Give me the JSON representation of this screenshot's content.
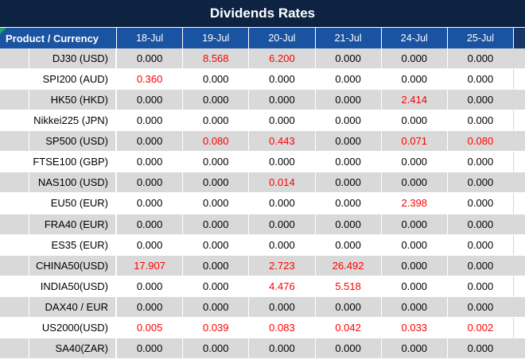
{
  "title": "Dividends Rates",
  "colors": {
    "title_bar_navy": "#0E2342",
    "header_blue": "#1A53A1",
    "sliver_navy": "#173663",
    "row_stripe_gray": "#D9D9D9",
    "value_red": "#FE0000",
    "flag_green": "#21A366"
  },
  "table": {
    "product_header": "Product / Currency",
    "date_columns": [
      "18-Jul",
      "19-Jul",
      "20-Jul",
      "21-Jul",
      "24-Jul",
      "25-Jul"
    ],
    "rows": [
      {
        "product": "DJ30 (USD)",
        "values": [
          "0.000",
          "8.568",
          "6.200",
          "0.000",
          "0.000",
          "0.000"
        ]
      },
      {
        "product": "SPI200 (AUD)",
        "values": [
          "0.360",
          "0.000",
          "0.000",
          "0.000",
          "0.000",
          "0.000"
        ]
      },
      {
        "product": "HK50 (HKD)",
        "values": [
          "0.000",
          "0.000",
          "0.000",
          "0.000",
          "2.414",
          "0.000"
        ]
      },
      {
        "product": "Nikkei225 (JPN)",
        "values": [
          "0.000",
          "0.000",
          "0.000",
          "0.000",
          "0.000",
          "0.000"
        ]
      },
      {
        "product": "SP500 (USD)",
        "values": [
          "0.000",
          "0.080",
          "0.443",
          "0.000",
          "0.071",
          "0.080"
        ]
      },
      {
        "product": "FTSE100 (GBP)",
        "values": [
          "0.000",
          "0.000",
          "0.000",
          "0.000",
          "0.000",
          "0.000"
        ]
      },
      {
        "product": "NAS100 (USD)",
        "values": [
          "0.000",
          "0.000",
          "0.014",
          "0.000",
          "0.000",
          "0.000"
        ]
      },
      {
        "product": "EU50 (EUR)",
        "values": [
          "0.000",
          "0.000",
          "0.000",
          "0.000",
          "2.398",
          "0.000"
        ]
      },
      {
        "product": "FRA40 (EUR)",
        "values": [
          "0.000",
          "0.000",
          "0.000",
          "0.000",
          "0.000",
          "0.000"
        ]
      },
      {
        "product": "ES35 (EUR)",
        "values": [
          "0.000",
          "0.000",
          "0.000",
          "0.000",
          "0.000",
          "0.000"
        ]
      },
      {
        "product": "CHINA50(USD)",
        "values": [
          "17.907",
          "0.000",
          "2.723",
          "26.492",
          "0.000",
          "0.000"
        ]
      },
      {
        "product": "INDIA50(USD)",
        "values": [
          "0.000",
          "0.000",
          "4.476",
          "5.518",
          "0.000",
          "0.000"
        ]
      },
      {
        "product": "DAX40 / EUR",
        "values": [
          "0.000",
          "0.000",
          "0.000",
          "0.000",
          "0.000",
          "0.000"
        ]
      },
      {
        "product": "US2000(USD)",
        "values": [
          "0.005",
          "0.039",
          "0.083",
          "0.042",
          "0.033",
          "0.002"
        ]
      },
      {
        "product": "SA40(ZAR)",
        "values": [
          "0.000",
          "0.000",
          "0.000",
          "0.000",
          "0.000",
          "0.000"
        ]
      }
    ],
    "zero_value": "0.000"
  }
}
